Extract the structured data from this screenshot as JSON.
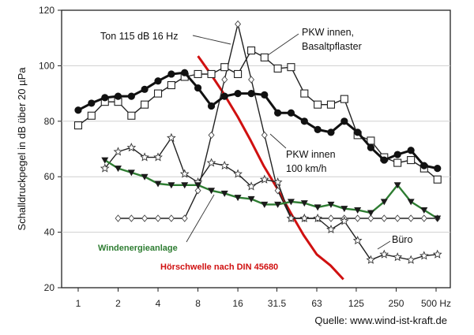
{
  "chart_data": {
    "type": "line",
    "title": "",
    "xlabel": "",
    "ylabel": "Schalldruckpegel in dB über 20 µPa",
    "ylim": [
      20,
      120
    ],
    "yticks": [
      20,
      40,
      60,
      80,
      100,
      120
    ],
    "x_scale": "log2",
    "xlim": [
      0.75,
      640
    ],
    "xticks": [
      {
        "value": 1,
        "label": "1"
      },
      {
        "value": 2,
        "label": "2"
      },
      {
        "value": 4,
        "label": "4"
      },
      {
        "value": 8,
        "label": "8"
      },
      {
        "value": 16,
        "label": "16"
      },
      {
        "value": 31.5,
        "label": "31.5"
      },
      {
        "value": 63,
        "label": "63"
      },
      {
        "value": 125,
        "label": "125"
      },
      {
        "value": 250,
        "label": "250"
      },
      {
        "value": 500,
        "label": "500 Hz"
      }
    ],
    "series": [
      {
        "name": "PKW innen, Basaltpflaster",
        "marker": "open-square",
        "color": "#222222",
        "x": [
          1,
          1.26,
          1.59,
          2,
          2.52,
          3.17,
          4,
          5.04,
          6.35,
          8,
          10.1,
          12.7,
          16,
          20.2,
          25.4,
          32,
          40.3,
          50.8,
          64,
          80.6,
          101.6,
          128,
          161,
          203,
          256,
          323,
          406,
          512
        ],
        "y": [
          78.5,
          82,
          87,
          87,
          82,
          86,
          90,
          93,
          96,
          97,
          97,
          99.5,
          97,
          105.5,
          103,
          99,
          99.5,
          90,
          86,
          86,
          88,
          75,
          73,
          67,
          65,
          66,
          63,
          59
        ]
      },
      {
        "name": "PKW innen 100 km/h",
        "marker": "filled-circle",
        "color": "#111111",
        "x": [
          1,
          1.26,
          1.59,
          2,
          2.52,
          3.17,
          4,
          5.04,
          6.35,
          8,
          10.1,
          12.7,
          16,
          20.2,
          25.4,
          32,
          40.3,
          50.8,
          64,
          80.6,
          101.6,
          128,
          161,
          203,
          256,
          323,
          406,
          512
        ],
        "y": [
          84,
          86.5,
          88.5,
          89,
          89,
          91.5,
          94.5,
          97,
          97.5,
          92,
          85.5,
          89,
          90,
          90,
          89.5,
          83,
          83,
          80,
          77,
          76,
          80,
          76,
          70.5,
          66,
          68,
          69.5,
          64,
          63
        ]
      },
      {
        "name": "Ton 115 dB 16 Hz",
        "marker": "open-diamond",
        "color": "#222222",
        "x": [
          2,
          2.52,
          3.17,
          4,
          5.04,
          6.35,
          8,
          10.1,
          12.7,
          16,
          20.2,
          25.4,
          32,
          40.3,
          50.8,
          64,
          80.6,
          101.6,
          128,
          161,
          203,
          256,
          323,
          406,
          512
        ],
        "y": [
          45,
          45,
          45,
          45,
          45,
          45,
          55,
          75,
          95,
          115,
          95,
          75,
          55,
          45,
          45,
          45,
          45,
          45,
          45,
          45,
          45,
          45,
          45,
          45,
          45
        ]
      },
      {
        "name": "Büro",
        "marker": "open-star",
        "color": "#222222",
        "x": [
          1.59,
          2,
          2.52,
          3.17,
          4,
          5.04,
          6.35,
          8,
          10.1,
          12.7,
          16,
          20.2,
          25.4,
          32,
          40.3,
          50.8,
          64,
          80.6,
          101.6,
          128,
          161,
          203,
          256,
          323,
          406,
          512
        ],
        "y": [
          63,
          69,
          70.5,
          67,
          67,
          74,
          61,
          58,
          65,
          64,
          61,
          56.5,
          59,
          58,
          45,
          45,
          45,
          41,
          44,
          37,
          30,
          32,
          31,
          30,
          31.5,
          32
        ]
      },
      {
        "name": "Windenergieanlage",
        "marker": "filled-triangle-down",
        "color": "#2e7d32",
        "x": [
          1.59,
          2,
          2.52,
          3.17,
          4,
          5.04,
          6.35,
          8,
          10.1,
          12.7,
          16,
          20.2,
          25.4,
          32,
          40.3,
          50.8,
          64,
          80.6,
          101.6,
          128,
          161,
          203,
          256,
          323,
          406,
          512
        ],
        "y": [
          66,
          63,
          61.5,
          60,
          57.5,
          57,
          57,
          57,
          55,
          54,
          52.5,
          52,
          50,
          50,
          51,
          50.5,
          49,
          50,
          48.5,
          48,
          47,
          51,
          57,
          51,
          48,
          45
        ]
      },
      {
        "name": "Hörschwelle nach DIN 45680",
        "marker": "none",
        "color": "#d01010",
        "x": [
          8,
          10,
          12.5,
          16,
          20,
          25,
          31.5,
          40,
          50,
          63,
          80,
          100
        ],
        "y": [
          103.5,
          97,
          90,
          81.5,
          73,
          64,
          56,
          47,
          39,
          32,
          28,
          23
        ]
      }
    ],
    "annotations": [
      {
        "text": "Ton 115 dB 16 Hz",
        "target": "Ton 115 dB 16 Hz"
      },
      {
        "text": "PKW innen,",
        "target": "PKW innen, Basaltpflaster"
      },
      {
        "text": "Basaltpflaster",
        "target": "PKW innen, Basaltpflaster"
      },
      {
        "text": "PKW innen",
        "target": "PKW innen 100 km/h"
      },
      {
        "text": "100 km/h",
        "target": "PKW innen 100 km/h"
      },
      {
        "text": "Büro",
        "target": "Büro"
      },
      {
        "text": "Windenergieanlage",
        "target": "Windenergieanlage"
      },
      {
        "text": "Hörschwelle nach DIN 45680",
        "target": "Hörschwelle nach DIN 45680"
      }
    ],
    "source": "Quelle: www.wind-ist-kraft.de"
  }
}
